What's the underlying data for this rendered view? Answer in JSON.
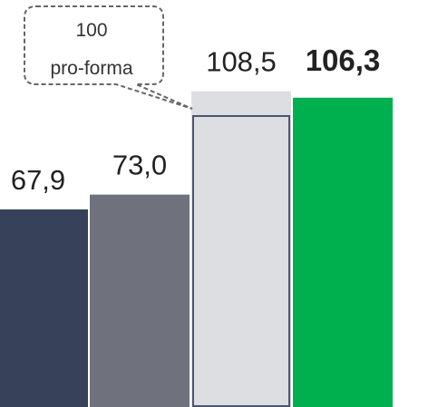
{
  "chart_data": {
    "type": "bar",
    "series": [
      {
        "values": [
          67.9,
          73.0,
          108.5,
          106.3
        ],
        "value_labels": [
          "67,9",
          "73,0",
          "108,5",
          "106,3"
        ],
        "colors": [
          "#37425a",
          "#6f727c",
          "#dcdee1",
          "#00b04f"
        ]
      }
    ],
    "annotation": {
      "value": 100,
      "text": "pro-forma",
      "color": "#4b5670"
    }
  }
}
